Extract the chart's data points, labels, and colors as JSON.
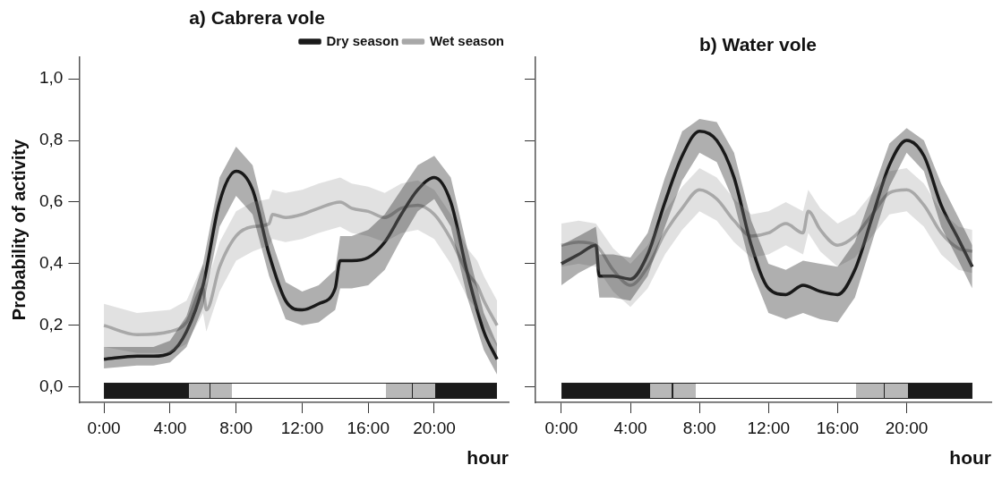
{
  "chart_data": [
    {
      "type": "line",
      "title": "a) Cabrera vole",
      "xlabel": "hour",
      "ylabel": "Probability of activity",
      "xlim": [
        -1.5,
        24.5
      ],
      "ylim": [
        -0.05,
        1.07
      ],
      "xticks": [
        {
          "value": 0,
          "label": "0:00"
        },
        {
          "value": 4,
          "label": "4:00"
        },
        {
          "value": 8,
          "label": "8:00"
        },
        {
          "value": 12,
          "label": "12:00"
        },
        {
          "value": 16,
          "label": "16:00"
        },
        {
          "value": 20,
          "label": "20:00"
        }
      ],
      "yticks": [
        {
          "value": 0,
          "label": "0,0"
        },
        {
          "value": 0.2,
          "label": "0,2"
        },
        {
          "value": 0.4,
          "label": "0,4"
        },
        {
          "value": 0.6,
          "label": "0,6"
        },
        {
          "value": 0.8,
          "label": "0,8"
        },
        {
          "value": 1,
          "label": "1,0"
        }
      ],
      "grid": false,
      "legend": "top right",
      "marker": "none",
      "line_style": "solid",
      "series": [
        {
          "name": "Dry season",
          "color": "#1a1a1a",
          "x": [
            0,
            2,
            3,
            4,
            5,
            6,
            7,
            8,
            9,
            10,
            11,
            12,
            13,
            14,
            14.3,
            15,
            16,
            17,
            18,
            19,
            20,
            21,
            22,
            23,
            23.8
          ],
          "values": [
            0.09,
            0.1,
            0.1,
            0.11,
            0.18,
            0.33,
            0.6,
            0.7,
            0.64,
            0.43,
            0.28,
            0.25,
            0.27,
            0.32,
            0.41,
            0.41,
            0.42,
            0.47,
            0.56,
            0.64,
            0.68,
            0.6,
            0.37,
            0.18,
            0.09
          ],
          "lower": [
            0.06,
            0.07,
            0.07,
            0.08,
            0.13,
            0.26,
            0.52,
            0.62,
            0.56,
            0.36,
            0.22,
            0.2,
            0.21,
            0.25,
            0.32,
            0.32,
            0.33,
            0.38,
            0.48,
            0.57,
            0.61,
            0.52,
            0.29,
            0.12,
            0.04
          ],
          "upper": [
            0.13,
            0.13,
            0.13,
            0.15,
            0.23,
            0.4,
            0.68,
            0.78,
            0.72,
            0.5,
            0.34,
            0.31,
            0.33,
            0.38,
            0.49,
            0.49,
            0.51,
            0.56,
            0.64,
            0.72,
            0.75,
            0.68,
            0.45,
            0.24,
            0.14
          ]
        },
        {
          "name": "Wet season",
          "color": "#a8a8a8",
          "x": [
            0,
            2,
            4,
            5,
            6,
            6.2,
            7,
            8,
            9,
            10,
            10.2,
            11,
            12,
            13,
            14.3,
            15,
            16,
            17,
            18,
            19,
            20,
            21,
            22,
            22.6,
            23,
            23.8
          ],
          "values": [
            0.2,
            0.17,
            0.18,
            0.21,
            0.32,
            0.25,
            0.39,
            0.49,
            0.52,
            0.53,
            0.56,
            0.55,
            0.56,
            0.58,
            0.6,
            0.58,
            0.57,
            0.55,
            0.58,
            0.59,
            0.56,
            0.48,
            0.37,
            0.33,
            0.28,
            0.2
          ],
          "lower": [
            0.13,
            0.11,
            0.11,
            0.14,
            0.24,
            0.18,
            0.31,
            0.41,
            0.44,
            0.46,
            0.48,
            0.47,
            0.48,
            0.5,
            0.52,
            0.5,
            0.49,
            0.47,
            0.5,
            0.51,
            0.48,
            0.4,
            0.29,
            0.25,
            0.2,
            0.13
          ],
          "upper": [
            0.27,
            0.24,
            0.25,
            0.28,
            0.4,
            0.33,
            0.47,
            0.57,
            0.6,
            0.61,
            0.64,
            0.63,
            0.64,
            0.66,
            0.68,
            0.66,
            0.65,
            0.63,
            0.66,
            0.67,
            0.64,
            0.56,
            0.45,
            0.41,
            0.36,
            0.28
          ]
        }
      ]
    },
    {
      "type": "line",
      "title": "b) Water vole",
      "xlabel": "hour",
      "xlim": [
        -1.5,
        24.9
      ],
      "ylim": [
        -0.05,
        1.07
      ],
      "tick_labels": "x",
      "xticks": [
        {
          "value": 0,
          "label": "0:00"
        },
        {
          "value": 4,
          "label": "4:00"
        },
        {
          "value": 8,
          "label": "8:00"
        },
        {
          "value": 12,
          "label": "12:00"
        },
        {
          "value": 16,
          "label": "16:00"
        },
        {
          "value": 20,
          "label": "20:00"
        }
      ],
      "yticks": [
        {
          "value": 0,
          "label": null
        },
        {
          "value": 0.2,
          "label": null
        },
        {
          "value": 0.4,
          "label": null
        },
        {
          "value": 0.6,
          "label": null
        },
        {
          "value": 0.8,
          "label": null
        },
        {
          "value": 1,
          "label": null
        }
      ],
      "grid": false,
      "marker": "none",
      "line_style": "solid",
      "series": [
        {
          "color": "#1a1a1a",
          "x": [
            0,
            1,
            2,
            2.2,
            3,
            4,
            5,
            6,
            7,
            8,
            9,
            10,
            11,
            12,
            13,
            14,
            15,
            16,
            17,
            18,
            19,
            20,
            21,
            22,
            23,
            23.8
          ],
          "values": [
            0.4,
            0.43,
            0.46,
            0.36,
            0.36,
            0.35,
            0.43,
            0.6,
            0.75,
            0.83,
            0.8,
            0.68,
            0.46,
            0.32,
            0.3,
            0.33,
            0.31,
            0.3,
            0.38,
            0.55,
            0.72,
            0.8,
            0.75,
            0.59,
            0.48,
            0.39
          ],
          "lower": [
            0.33,
            0.37,
            0.4,
            0.29,
            0.29,
            0.28,
            0.36,
            0.52,
            0.67,
            0.76,
            0.73,
            0.6,
            0.38,
            0.24,
            0.22,
            0.24,
            0.22,
            0.21,
            0.29,
            0.47,
            0.65,
            0.76,
            0.7,
            0.52,
            0.41,
            0.32
          ],
          "upper": [
            0.46,
            0.49,
            0.52,
            0.43,
            0.43,
            0.42,
            0.5,
            0.68,
            0.83,
            0.87,
            0.86,
            0.76,
            0.54,
            0.4,
            0.38,
            0.41,
            0.4,
            0.39,
            0.47,
            0.63,
            0.79,
            0.84,
            0.8,
            0.66,
            0.55,
            0.46
          ]
        },
        {
          "color": "#a8a8a8",
          "x": [
            0,
            1,
            2,
            3,
            4,
            5,
            6,
            7,
            8,
            9,
            10,
            11,
            12,
            13,
            14,
            14.3,
            15,
            16,
            17,
            18,
            19,
            20,
            21,
            22,
            23,
            23.8
          ],
          "values": [
            0.46,
            0.47,
            0.46,
            0.38,
            0.33,
            0.39,
            0.5,
            0.58,
            0.64,
            0.61,
            0.54,
            0.49,
            0.5,
            0.53,
            0.5,
            0.57,
            0.51,
            0.46,
            0.49,
            0.56,
            0.63,
            0.64,
            0.59,
            0.5,
            0.45,
            0.44
          ],
          "lower": [
            0.39,
            0.4,
            0.39,
            0.31,
            0.26,
            0.32,
            0.43,
            0.51,
            0.57,
            0.54,
            0.47,
            0.42,
            0.43,
            0.46,
            0.43,
            0.5,
            0.44,
            0.39,
            0.42,
            0.49,
            0.56,
            0.57,
            0.52,
            0.43,
            0.38,
            0.37
          ],
          "upper": [
            0.53,
            0.54,
            0.53,
            0.45,
            0.4,
            0.46,
            0.57,
            0.65,
            0.71,
            0.68,
            0.61,
            0.56,
            0.57,
            0.6,
            0.57,
            0.64,
            0.58,
            0.53,
            0.56,
            0.63,
            0.7,
            0.71,
            0.66,
            0.57,
            0.52,
            0.51
          ]
        }
      ]
    }
  ]
}
